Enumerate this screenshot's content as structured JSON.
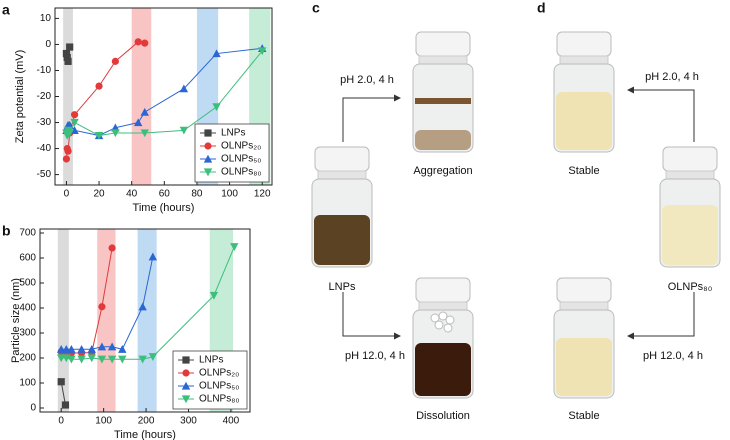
{
  "chart_data": [
    {
      "type": "line",
      "panel_label": "a",
      "x_label": "Time (hours)",
      "y_label": "Zeta potential (mV)",
      "xlim": [
        -7,
        126
      ],
      "ylim": [
        -54,
        14
      ],
      "xticks": [
        0,
        20,
        40,
        60,
        80,
        100,
        120
      ],
      "yticks": [
        -50,
        -40,
        -30,
        -20,
        -10,
        0,
        10
      ],
      "legend": "lower right",
      "highlight_ranges": [
        {
          "x": [
            -2,
            4
          ],
          "color": "#cfcfcf"
        },
        {
          "x": [
            40,
            52
          ],
          "color": "#f6b0b0"
        },
        {
          "x": [
            80,
            93
          ],
          "color": "#a9cdef"
        },
        {
          "x": [
            112,
            125
          ],
          "color": "#b2e6c8"
        }
      ],
      "series": [
        {
          "name": "LNPs",
          "color": "#444444",
          "marker": "square",
          "x": [
            0,
            0.5,
            1,
            2
          ],
          "values": [
            -3.5,
            -5,
            -6.5,
            -1
          ]
        },
        {
          "name": "OLNPs₂₀",
          "color": "#e23a3a",
          "marker": "circle",
          "x": [
            0,
            0.5,
            1,
            2,
            5,
            20,
            30,
            44,
            48
          ],
          "values": [
            -44,
            -40,
            -41,
            -34,
            -27,
            -16,
            -6.5,
            1,
            0.5
          ]
        },
        {
          "name": "OLNPs₅₀",
          "color": "#2a66d4",
          "marker": "triangle-up",
          "x": [
            0,
            0.5,
            1,
            2,
            5,
            20,
            30,
            44,
            48,
            72,
            92,
            120
          ],
          "values": [
            -33,
            -32,
            -31,
            -31,
            -33,
            -35,
            -32,
            -30,
            -26,
            -17,
            -3.5,
            -1.5
          ]
        },
        {
          "name": "OLNPs₈₀",
          "color": "#3cbf7c",
          "marker": "triangle-down",
          "x": [
            0,
            0.5,
            1,
            2,
            5,
            20,
            30,
            48,
            72,
            92,
            120
          ],
          "values": [
            -34,
            -35,
            -33,
            -34,
            -30,
            -35,
            -34,
            -34,
            -33,
            -24,
            -2.5
          ]
        }
      ]
    },
    {
      "type": "line",
      "panel_label": "b",
      "x_label": "Time (hours)",
      "y_label": "Particle size (nm)",
      "xlim": [
        -50,
        445
      ],
      "ylim": [
        -16,
        716
      ],
      "xticks": [
        0,
        100,
        200,
        300,
        400
      ],
      "yticks": [
        0,
        100,
        200,
        300,
        400,
        500,
        600,
        700
      ],
      "legend": "lower right",
      "highlight_ranges": [
        {
          "x": [
            -8,
            18
          ],
          "color": "#cfcfcf"
        },
        {
          "x": [
            85,
            128
          ],
          "color": "#f6b0b0"
        },
        {
          "x": [
            180,
            225
          ],
          "color": "#a9cdef"
        },
        {
          "x": [
            350,
            405
          ],
          "color": "#b2e6c8"
        }
      ],
      "series": [
        {
          "name": "LNPs",
          "color": "#444444",
          "marker": "square",
          "x": [
            0,
            10
          ],
          "values": [
            105,
            12
          ]
        },
        {
          "name": "OLNPs₂₀",
          "color": "#e23a3a",
          "marker": "circle",
          "x": [
            0,
            12,
            24,
            48,
            72,
            96,
            120
          ],
          "values": [
            225,
            225,
            220,
            220,
            222,
            405,
            640
          ]
        },
        {
          "name": "OLNPs₅₀",
          "color": "#2a66d4",
          "marker": "triangle-up",
          "x": [
            0,
            12,
            24,
            48,
            72,
            96,
            120,
            144,
            192,
            216
          ],
          "values": [
            235,
            235,
            235,
            235,
            235,
            245,
            245,
            235,
            405,
            605
          ]
        },
        {
          "name": "OLNPs₈₀",
          "color": "#3cbf7c",
          "marker": "triangle-down",
          "x": [
            0,
            12,
            24,
            48,
            72,
            96,
            120,
            144,
            192,
            216,
            360,
            408
          ],
          "values": [
            200,
            200,
            195,
            195,
            200,
            195,
            195,
            195,
            195,
            205,
            450,
            645
          ]
        }
      ]
    }
  ],
  "panels": [
    {
      "label": "c",
      "start": "LNPs",
      "top_arrow": "pH 2.0, 4 h",
      "top_result": "Aggregation",
      "bottom_arrow": "pH 12.0, 4 h",
      "bottom_result": "Dissolution"
    },
    {
      "label": "d",
      "start": "OLNPs₈₀",
      "top_arrow": "pH 2.0, 4 h",
      "top_result": "Stable",
      "bottom_arrow": "pH 12.0, 4 h",
      "bottom_result": "Stable"
    }
  ]
}
